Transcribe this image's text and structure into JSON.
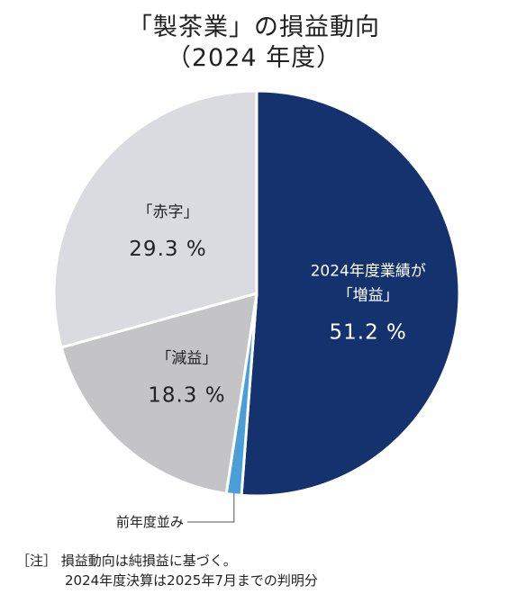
{
  "title_line1": "「製茶業」の損益動向",
  "title_line2": "（2024 年度）",
  "note_line1": "［注］ 損益動向は純損益に基づく。",
  "note_line2": "2024年度決算は2025年7月までの判明分",
  "chart_data": {
    "type": "pie",
    "title": "「製茶業」の損益動向（2024 年度）",
    "slices": [
      {
        "label_lines": [
          "2024年度業績が",
          "「増益」"
        ],
        "value": 51.2,
        "value_text": "51.2 %",
        "color": "#14336e",
        "text_color": "#ffffff"
      },
      {
        "label_lines": [
          "前年度並み"
        ],
        "value": 1.2,
        "value_text": "",
        "color": "#4a9fd8",
        "text_color": "#222222"
      },
      {
        "label_lines": [
          "「減益」"
        ],
        "value": 18.3,
        "value_text": "18.3 %",
        "color": "#c4c4c6",
        "text_color": "#222222"
      },
      {
        "label_lines": [
          "「赤字」"
        ],
        "value": 29.3,
        "value_text": "29.3 %",
        "color": "#d9dbe0",
        "text_color": "#222222"
      }
    ]
  }
}
